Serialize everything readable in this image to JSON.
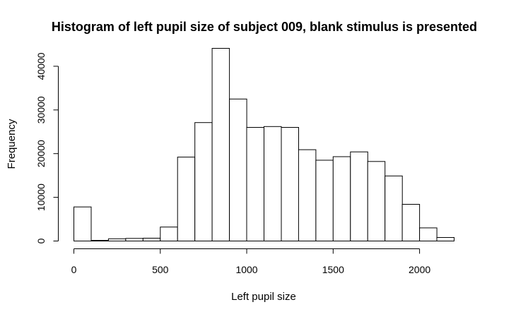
{
  "chart_data": {
    "type": "bar",
    "title": "Histogram of left pupil size of subject 009, blank stimulus is presented",
    "xlabel": "Left pupil size",
    "ylabel": "Frequency",
    "bin_width": 100,
    "bins_start": [
      0,
      100,
      200,
      300,
      400,
      500,
      600,
      700,
      800,
      900,
      1000,
      1100,
      1200,
      1300,
      1400,
      1500,
      1600,
      1700,
      1800,
      1900,
      2000,
      2100
    ],
    "values": [
      7800,
      150,
      500,
      600,
      650,
      3200,
      19200,
      27100,
      44100,
      32500,
      26000,
      26200,
      26000,
      20900,
      18500,
      19300,
      20400,
      18200,
      14900,
      8400,
      3000,
      800
    ],
    "xlim": [
      0,
      2200
    ],
    "ylim": [
      0,
      44100
    ],
    "x_ticks": [
      0,
      500,
      1000,
      1500,
      2000
    ],
    "x_tick_labels": [
      "0",
      "500",
      "1000",
      "1500",
      "2000"
    ],
    "y_ticks": [
      0,
      10000,
      20000,
      30000,
      40000
    ],
    "y_tick_labels": [
      "0",
      "10000",
      "20000",
      "30000",
      "40000"
    ]
  }
}
